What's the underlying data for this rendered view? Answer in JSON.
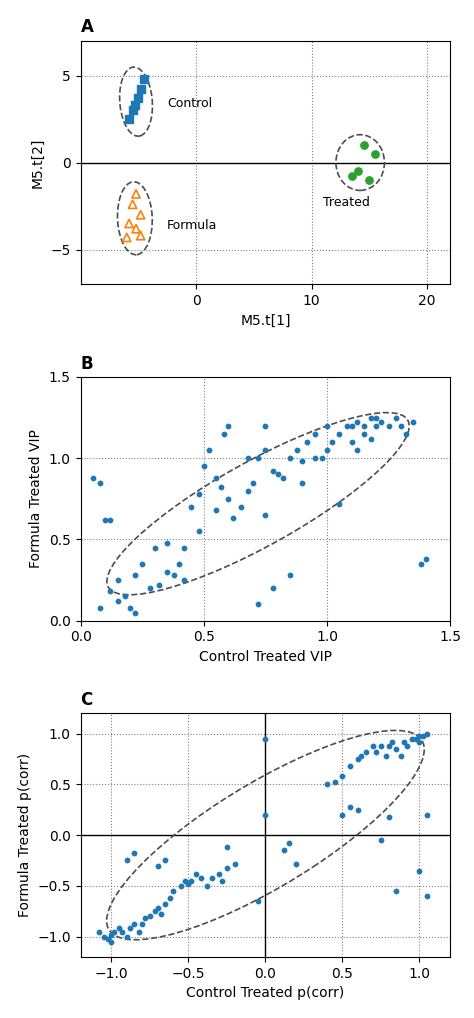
{
  "chart_data": [
    {
      "type": "scatter",
      "title": "A",
      "xlabel": "M5.t[1]",
      "ylabel": "M5.t[2]",
      "xlim": [
        -10,
        22
      ],
      "ylim": [
        -7,
        7
      ],
      "xticks": [
        0,
        10,
        20
      ],
      "yticks": [
        {
          "value": -5,
          "label": "−5"
        },
        0,
        5
      ],
      "reference_lines_x": [
        0,
        10,
        20,
        -10
      ],
      "reference_lines_y": [
        -5,
        5
      ],
      "solid_lines_x": [],
      "solid_lines_y": [
        0
      ],
      "series": [
        {
          "marker": "square",
          "x": [
            -4.5,
            -4.8,
            -5.0,
            -5.3,
            -5.5,
            -5.8
          ],
          "y": [
            4.8,
            4.2,
            3.7,
            3.3,
            3.0,
            2.5
          ]
        },
        {
          "marker": "open_triangle",
          "x": [
            -5.2,
            -5.5,
            -4.8,
            -5.8,
            -5.2,
            -6.0,
            -4.8
          ],
          "y": [
            -1.8,
            -2.4,
            -3.0,
            -3.5,
            -3.8,
            -4.3,
            -4.2
          ]
        },
        {
          "marker": "circle",
          "x": [
            14.5,
            15.5,
            14.0,
            15.0,
            13.5
          ],
          "y": [
            1.0,
            0.5,
            -0.5,
            -1.0,
            -0.8
          ]
        }
      ],
      "ellipses": [
        {
          "cx": -5.2,
          "cy": 3.5,
          "w": 2.8,
          "h": 4.0,
          "angle": 10
        },
        {
          "cx": -5.3,
          "cy": -3.2,
          "w": 3.0,
          "h": 4.2,
          "angle": 5
        },
        {
          "cx": 14.2,
          "cy": 0.0,
          "w": 4.2,
          "h": 3.2,
          "angle": 0
        }
      ],
      "annotations": [
        {
          "text": "Control",
          "x": -2.5,
          "y": 3.2
        },
        {
          "text": "Formula",
          "x": -2.5,
          "y": -3.8
        },
        {
          "text": "Treated",
          "x": 11.0,
          "y": -2.5
        }
      ]
    },
    {
      "type": "scatter",
      "title": "B",
      "xlabel": "Control Treated VIP",
      "ylabel": "Formula Treated VIP",
      "xlim": [
        0.0,
        1.5
      ],
      "ylim": [
        0.0,
        1.5
      ],
      "xticks": [
        0.0,
        0.5,
        1.0,
        1.5
      ],
      "yticks": [
        0.0,
        0.5,
        1.0,
        1.5
      ],
      "reference_lines_x": [
        0.5,
        1.0
      ],
      "reference_lines_y": [
        0.5,
        1.0
      ],
      "solid_lines_x": [],
      "solid_lines_y": [],
      "series": [
        {
          "marker": "dot",
          "x": [
            0.05,
            0.08,
            0.1,
            0.12,
            0.12,
            0.15,
            0.18,
            0.2,
            0.22,
            0.22,
            0.25,
            0.3,
            0.32,
            0.35,
            0.38,
            0.4,
            0.42,
            0.45,
            0.48,
            0.5,
            0.52,
            0.55,
            0.57,
            0.58,
            0.6,
            0.62,
            0.65,
            0.68,
            0.7,
            0.72,
            0.75,
            0.78,
            0.8,
            0.82,
            0.85,
            0.88,
            0.9,
            0.92,
            0.95,
            0.98,
            1.0,
            1.0,
            1.02,
            1.05,
            1.05,
            1.08,
            1.1,
            1.1,
            1.12,
            1.15,
            1.15,
            1.18,
            1.2,
            1.2,
            1.22,
            1.25,
            1.28,
            1.3,
            1.32,
            1.35,
            1.38,
            1.4,
            0.85,
            0.78,
            0.75,
            0.72,
            1.12,
            1.18,
            0.95,
            0.9,
            0.6,
            0.55,
            0.48,
            0.42,
            0.35,
            0.28,
            0.15,
            0.08,
            0.75,
            0.68
          ],
          "y": [
            0.88,
            0.85,
            0.62,
            0.62,
            0.18,
            0.25,
            0.15,
            0.08,
            0.05,
            0.28,
            0.35,
            0.45,
            0.22,
            0.48,
            0.28,
            0.35,
            0.25,
            0.7,
            0.78,
            0.95,
            1.05,
            0.88,
            0.82,
            1.15,
            1.2,
            0.63,
            0.7,
            0.8,
            0.85,
            1.0,
            1.05,
            0.92,
            0.9,
            0.88,
            1.0,
            1.05,
            0.98,
            1.1,
            1.15,
            1.0,
            1.05,
            1.2,
            1.1,
            1.15,
            0.72,
            1.2,
            1.1,
            1.2,
            1.22,
            1.15,
            1.2,
            1.25,
            1.2,
            1.25,
            1.22,
            1.2,
            1.25,
            1.2,
            1.15,
            1.22,
            0.35,
            0.38,
            0.28,
            0.2,
            0.65,
            0.1,
            1.05,
            1.12,
            1.0,
            0.85,
            0.75,
            0.68,
            0.55,
            0.45,
            0.3,
            0.2,
            0.12,
            0.08,
            1.2,
            1.0
          ]
        }
      ],
      "ellipses": [
        {
          "cx": 0.72,
          "cy": 0.72,
          "w": 1.6,
          "h": 0.45,
          "angle": 42
        }
      ],
      "annotations": []
    },
    {
      "type": "scatter",
      "title": "C",
      "xlabel": "Control Treated p(corr)",
      "ylabel": "Formula Treated p(corr)",
      "xlim": [
        -1.2,
        1.2
      ],
      "ylim": [
        -1.2,
        1.2
      ],
      "xticks": [
        {
          "value": -1.0,
          "label": "−1.0"
        },
        {
          "value": -0.5,
          "label": "−0.5"
        },
        {
          "value": 0,
          "label": "0.0"
        },
        0.5,
        1.0
      ],
      "yticks": [
        {
          "value": -1.0,
          "label": "−1.0"
        },
        {
          "value": -0.5,
          "label": "−0.5"
        },
        {
          "value": 0,
          "label": "0.0"
        },
        0.5,
        1.0
      ],
      "reference_lines_x": [
        -1.0,
        -0.5,
        0.5,
        1.0
      ],
      "reference_lines_y": [
        -1.0,
        -0.5,
        0.5,
        1.0
      ],
      "solid_lines_x": [
        0
      ],
      "solid_lines_y": [
        0
      ],
      "series": [
        {
          "marker": "dot",
          "x": [
            -1.08,
            -1.05,
            -1.02,
            -1.0,
            -1.0,
            -0.98,
            -0.95,
            -0.93,
            -0.9,
            -0.88,
            -0.85,
            -0.82,
            -0.8,
            -0.78,
            -0.75,
            -0.72,
            -0.7,
            -0.68,
            -0.65,
            -0.62,
            -0.6,
            -0.55,
            -0.52,
            -0.9,
            -0.85,
            -0.7,
            -0.65,
            -0.5,
            -0.48,
            -0.45,
            -0.42,
            -0.38,
            -0.35,
            -0.3,
            -0.28,
            -0.25,
            -0.2,
            0.0,
            0.0,
            -0.05,
            0.12,
            0.15,
            0.2,
            0.4,
            0.45,
            0.5,
            0.55,
            0.6,
            0.62,
            0.65,
            0.7,
            0.72,
            0.75,
            0.78,
            0.8,
            0.82,
            0.85,
            0.88,
            0.9,
            0.92,
            0.95,
            0.98,
            1.0,
            1.0,
            1.02,
            1.05,
            0.5,
            0.55,
            0.6,
            0.75,
            0.8,
            0.85,
            1.0,
            1.05,
            1.05,
            -0.25
          ],
          "y": [
            -0.95,
            -1.0,
            -1.02,
            -0.98,
            -1.05,
            -0.95,
            -0.92,
            -0.95,
            -1.0,
            -0.92,
            -0.88,
            -0.95,
            -0.88,
            -0.82,
            -0.8,
            -0.75,
            -0.72,
            -0.78,
            -0.68,
            -0.62,
            -0.55,
            -0.5,
            -0.45,
            -0.25,
            -0.18,
            -0.3,
            -0.25,
            -0.48,
            -0.45,
            -0.38,
            -0.42,
            -0.5,
            -0.42,
            -0.38,
            -0.45,
            -0.32,
            -0.28,
            0.95,
            0.2,
            -0.65,
            -0.15,
            -0.08,
            -0.28,
            0.5,
            0.52,
            0.58,
            0.68,
            0.75,
            0.78,
            0.82,
            0.88,
            0.82,
            0.88,
            0.78,
            0.88,
            0.92,
            0.85,
            0.78,
            0.92,
            0.88,
            0.95,
            0.95,
            0.98,
            0.92,
            0.98,
            1.0,
            0.2,
            0.28,
            0.25,
            -0.05,
            0.18,
            -0.55,
            -0.35,
            0.2,
            -0.6,
            -0.12
          ]
        }
      ],
      "ellipses": [
        {
          "cx": 0.0,
          "cy": 0.0,
          "w": 2.78,
          "h": 0.88,
          "angle": 45
        }
      ],
      "annotations": []
    }
  ]
}
